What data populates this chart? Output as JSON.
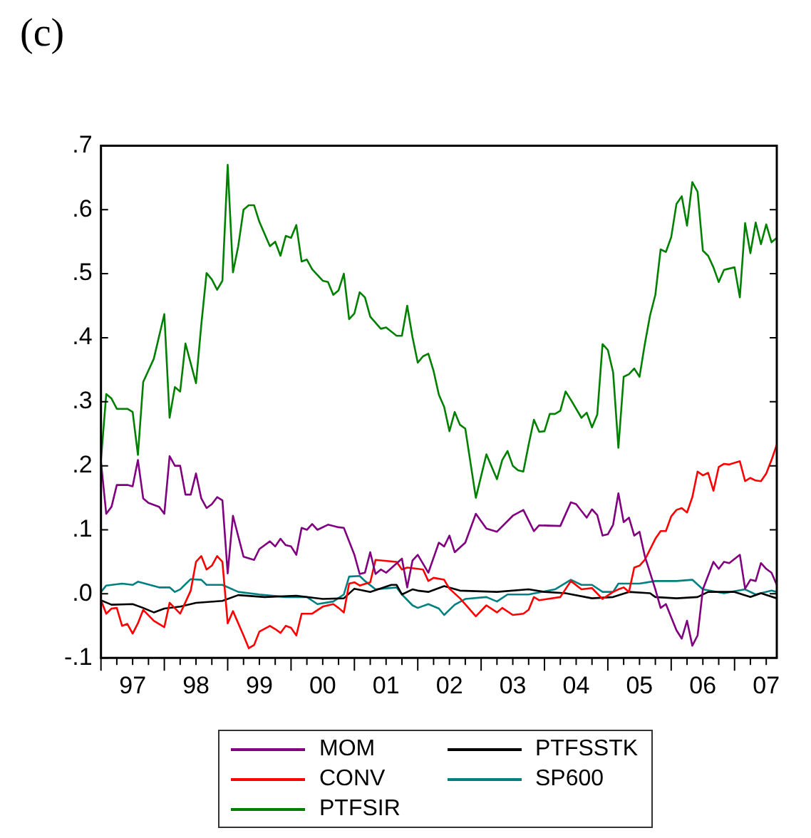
{
  "chart_data": {
    "type": "line",
    "title": "(c)",
    "legend": "bottom",
    "grid": false,
    "marker": "none",
    "line_style": "solid",
    "xlim": [
      "1997-01",
      "2007-09"
    ],
    "xticks": [
      {
        "value": "1997-07",
        "label": "97"
      },
      {
        "value": "1998-07",
        "label": "98"
      },
      {
        "value": "1999-07",
        "label": "99"
      },
      {
        "value": "2000-07",
        "label": "00"
      },
      {
        "value": "2001-07",
        "label": "01"
      },
      {
        "value": "2002-07",
        "label": "02"
      },
      {
        "value": "2003-07",
        "label": "03"
      },
      {
        "value": "2004-07",
        "label": "04"
      },
      {
        "value": "2005-07",
        "label": "05"
      },
      {
        "value": "2006-07",
        "label": "06"
      },
      {
        "value": "2007-07",
        "label": "07"
      }
    ],
    "ylim": [
      -0.1,
      0.7
    ],
    "yticks": [
      {
        "value": -0.1,
        "label": "-.1"
      },
      {
        "value": 0,
        "label": ".0"
      },
      {
        "value": 0.1,
        "label": ".1"
      },
      {
        "value": 0.2,
        "label": ".2"
      },
      {
        "value": 0.3,
        "label": ".3"
      },
      {
        "value": 0.4,
        "label": ".4"
      },
      {
        "value": 0.5,
        "label": ".5"
      },
      {
        "value": 0.6,
        "label": ".6"
      },
      {
        "value": 0.7,
        "label": ".7"
      }
    ],
    "series": [
      {
        "name": "MOM",
        "color": "#800080",
        "x": [
          "1997-01",
          "1997-02",
          "1997-03",
          "1997-04",
          "1997-06",
          "1997-07",
          "1997-08",
          "1997-09",
          "1997-10",
          "1997-12",
          "1998-01",
          "1998-02",
          "1998-03",
          "1998-04",
          "1998-05",
          "1998-06",
          "1998-07",
          "1998-08",
          "1998-09",
          "1998-10",
          "1998-11",
          "1998-12",
          "1999-01",
          "1999-02",
          "1999-04",
          "1999-06",
          "1999-07",
          "1999-09",
          "1999-10",
          "1999-11",
          "1999-12",
          "2000-01",
          "2000-02",
          "2000-03",
          "2000-04",
          "2000-05",
          "2000-06",
          "2000-08",
          "2000-10",
          "2000-11",
          "2001-01",
          "2001-02",
          "2001-03",
          "2001-04",
          "2001-05",
          "2001-06",
          "2001-07",
          "2001-10",
          "2001-11",
          "2001-12",
          "2002-01",
          "2002-03",
          "2002-05",
          "2002-06",
          "2002-07",
          "2002-08",
          "2002-10",
          "2002-12",
          "2003-02",
          "2003-04",
          "2003-07",
          "2003-09",
          "2003-11",
          "2003-12",
          "2004-04",
          "2004-06",
          "2004-07",
          "2004-09",
          "2004-10",
          "2004-11",
          "2004-12",
          "2005-01",
          "2005-02",
          "2005-03",
          "2005-04",
          "2005-05",
          "2005-06",
          "2005-07",
          "2005-08",
          "2005-10",
          "2005-11",
          "2005-12",
          "2006-02",
          "2006-03",
          "2006-04",
          "2006-05",
          "2006-06",
          "2006-07",
          "2006-09",
          "2006-10",
          "2006-11",
          "2006-12",
          "2007-02",
          "2007-03",
          "2007-04",
          "2007-05",
          "2007-06",
          "2007-07",
          "2007-08",
          "2007-09"
        ],
        "values": [
          0.206,
          0.125,
          0.136,
          0.17,
          0.17,
          0.168,
          0.209,
          0.149,
          0.142,
          0.136,
          0.125,
          0.215,
          0.2,
          0.2,
          0.155,
          0.155,
          0.188,
          0.149,
          0.134,
          0.14,
          0.151,
          0.146,
          0.032,
          0.122,
          0.058,
          0.053,
          0.07,
          0.082,
          0.074,
          0.086,
          0.076,
          0.074,
          0.061,
          0.103,
          0.1,
          0.109,
          0.1,
          0.108,
          0.104,
          0.103,
          0.061,
          0.031,
          0.033,
          0.065,
          0.031,
          0.038,
          0.033,
          0.055,
          0.01,
          0.052,
          0.061,
          0.033,
          0.08,
          0.074,
          0.091,
          0.065,
          0.08,
          0.125,
          0.102,
          0.097,
          0.122,
          0.131,
          0.098,
          0.107,
          0.106,
          0.143,
          0.14,
          0.119,
          0.132,
          0.123,
          0.091,
          0.093,
          0.108,
          0.157,
          0.112,
          0.119,
          0.091,
          0.097,
          0.059,
          0.007,
          -0.022,
          -0.016,
          -0.057,
          -0.07,
          -0.042,
          -0.081,
          -0.065,
          0.007,
          0.05,
          0.039,
          0.05,
          0.048,
          0.061,
          0.008,
          0.022,
          0.02,
          0.048,
          0.039,
          0.033,
          0.014
        ]
      },
      {
        "name": "CONV",
        "color": "#ff0000",
        "x": [
          "1997-01",
          "1997-02",
          "1997-03",
          "1997-04",
          "1997-05",
          "1997-06",
          "1997-07",
          "1997-08",
          "1997-09",
          "1997-11",
          "1998-01",
          "1998-02",
          "1998-04",
          "1998-06",
          "1998-07",
          "1998-08",
          "1998-09",
          "1998-10",
          "1998-11",
          "1998-12",
          "1999-01",
          "1999-02",
          "1999-04",
          "1999-05",
          "1999-06",
          "1999-07",
          "1999-09",
          "1999-10",
          "1999-11",
          "1999-12",
          "2000-01",
          "2000-02",
          "2000-03",
          "2000-05",
          "2000-07",
          "2000-09",
          "2000-10",
          "2000-11",
          "2000-12",
          "2001-01",
          "2001-02",
          "2001-04",
          "2001-05",
          "2001-09",
          "2001-10",
          "2001-11",
          "2002-01",
          "2002-02",
          "2002-03",
          "2002-04",
          "2002-06",
          "2002-07",
          "2002-09",
          "2002-12",
          "2003-02",
          "2003-04",
          "2003-05",
          "2003-07",
          "2003-09",
          "2003-10",
          "2003-11",
          "2003-12",
          "2004-04",
          "2004-06",
          "2004-08",
          "2004-10",
          "2004-12",
          "2005-02",
          "2005-03",
          "2005-04",
          "2005-05",
          "2005-06",
          "2005-07",
          "2005-08",
          "2005-10",
          "2005-11",
          "2005-12",
          "2006-01",
          "2006-02",
          "2006-03",
          "2006-04",
          "2006-05",
          "2006-06",
          "2006-07",
          "2006-08",
          "2006-09",
          "2006-10",
          "2006-11",
          "2006-12",
          "2007-02",
          "2007-03",
          "2007-04",
          "2007-05",
          "2007-06",
          "2007-07",
          "2007-08",
          "2007-09"
        ],
        "values": [
          -0.01,
          -0.031,
          -0.023,
          -0.022,
          -0.05,
          -0.047,
          -0.062,
          -0.046,
          -0.025,
          -0.042,
          -0.052,
          -0.014,
          -0.031,
          0.005,
          0.05,
          0.059,
          0.038,
          0.044,
          0.059,
          0.05,
          -0.046,
          -0.027,
          -0.065,
          -0.085,
          -0.08,
          -0.059,
          -0.05,
          -0.055,
          -0.061,
          -0.05,
          -0.053,
          -0.065,
          -0.031,
          -0.031,
          -0.02,
          -0.016,
          -0.022,
          -0.029,
          0.016,
          0.018,
          0.013,
          0.018,
          0.053,
          0.05,
          0.038,
          0.041,
          0.039,
          0.038,
          0.02,
          0.025,
          0.022,
          0.008,
          -0.007,
          -0.035,
          -0.018,
          -0.029,
          -0.022,
          -0.033,
          -0.031,
          -0.025,
          -0.005,
          -0.01,
          -0.005,
          0.02,
          0.007,
          0.009,
          -0.008,
          0.003,
          0.007,
          0.01,
          0.003,
          0.041,
          0.044,
          0.053,
          0.086,
          0.098,
          0.098,
          0.121,
          0.131,
          0.134,
          0.127,
          0.151,
          0.191,
          0.185,
          0.189,
          0.161,
          0.198,
          0.203,
          0.202,
          0.207,
          0.176,
          0.181,
          0.177,
          0.176,
          0.188,
          0.209,
          0.233
        ]
      },
      {
        "name": "PTFSIR",
        "color": "#008000",
        "x": [
          "1997-01",
          "1997-02",
          "1997-03",
          "1997-04",
          "1997-06",
          "1997-07",
          "1997-08",
          "1997-09",
          "1997-11",
          "1998-01",
          "1998-02",
          "1998-03",
          "1998-04",
          "1998-05",
          "1998-07",
          "1998-08",
          "1998-09",
          "1998-10",
          "1998-11",
          "1998-12",
          "1999-01",
          "1999-02",
          "1999-03",
          "1999-04",
          "1999-05",
          "1999-06",
          "1999-07",
          "1999-09",
          "1999-10",
          "1999-11",
          "1999-12",
          "2000-01",
          "2000-02",
          "2000-03",
          "2000-04",
          "2000-05",
          "2000-07",
          "2000-08",
          "2000-09",
          "2000-10",
          "2000-11",
          "2000-12",
          "2001-01",
          "2001-02",
          "2001-03",
          "2001-04",
          "2001-06",
          "2001-07",
          "2001-09",
          "2001-10",
          "2001-11",
          "2001-12",
          "2002-01",
          "2002-02",
          "2002-03",
          "2002-04",
          "2002-05",
          "2002-06",
          "2002-07",
          "2002-08",
          "2002-09",
          "2002-10",
          "2002-12",
          "2003-02",
          "2003-04",
          "2003-05",
          "2003-06",
          "2003-07",
          "2003-08",
          "2003-09",
          "2003-10",
          "2003-11",
          "2003-12",
          "2004-01",
          "2004-02",
          "2004-03",
          "2004-04",
          "2004-05",
          "2004-06",
          "2004-08",
          "2004-09",
          "2004-10",
          "2004-11",
          "2004-12",
          "2005-01",
          "2005-02",
          "2005-03",
          "2005-04",
          "2005-05",
          "2005-06",
          "2005-07",
          "2005-08",
          "2005-09",
          "2005-10",
          "2005-11",
          "2005-12",
          "2006-01",
          "2006-02",
          "2006-03",
          "2006-04",
          "2006-05",
          "2006-06",
          "2006-07",
          "2006-08",
          "2006-09",
          "2006-10",
          "2006-11",
          "2007-01",
          "2007-02",
          "2007-03",
          "2007-04",
          "2007-05",
          "2007-06",
          "2007-07",
          "2007-08",
          "2007-09"
        ],
        "values": [
          0.209,
          0.312,
          0.305,
          0.289,
          0.289,
          0.284,
          0.217,
          0.331,
          0.367,
          0.437,
          0.275,
          0.323,
          0.316,
          0.391,
          0.329,
          0.42,
          0.501,
          0.491,
          0.475,
          0.489,
          0.67,
          0.502,
          0.543,
          0.6,
          0.607,
          0.607,
          0.581,
          0.543,
          0.55,
          0.528,
          0.559,
          0.556,
          0.576,
          0.519,
          0.522,
          0.507,
          0.489,
          0.487,
          0.467,
          0.474,
          0.5,
          0.429,
          0.438,
          0.471,
          0.463,
          0.433,
          0.414,
          0.416,
          0.403,
          0.403,
          0.45,
          0.401,
          0.361,
          0.371,
          0.375,
          0.348,
          0.311,
          0.292,
          0.254,
          0.284,
          0.264,
          0.258,
          0.15,
          0.218,
          0.179,
          0.209,
          0.223,
          0.2,
          0.193,
          0.191,
          0.233,
          0.272,
          0.253,
          0.254,
          0.281,
          0.281,
          0.286,
          0.316,
          0.303,
          0.275,
          0.283,
          0.26,
          0.28,
          0.39,
          0.381,
          0.346,
          0.228,
          0.339,
          0.343,
          0.352,
          0.339,
          0.39,
          0.435,
          0.467,
          0.538,
          0.534,
          0.557,
          0.609,
          0.621,
          0.575,
          0.643,
          0.628,
          0.536,
          0.528,
          0.51,
          0.487,
          0.506,
          0.51,
          0.463,
          0.579,
          0.532,
          0.58,
          0.546,
          0.577,
          0.549,
          0.556
        ]
      },
      {
        "name": "PTFSSTK",
        "color": "#000000",
        "x": [
          "1997-01",
          "1997-03",
          "1997-07",
          "1997-09",
          "1997-11",
          "1998-01",
          "1998-04",
          "1998-07",
          "1998-12",
          "1999-03",
          "1999-08",
          "2000-02",
          "2000-07",
          "2000-11",
          "2001-01",
          "2001-04",
          "2001-08",
          "2001-09",
          "2001-10",
          "2001-12",
          "2002-01",
          "2002-03",
          "2002-06",
          "2002-09",
          "2003-04",
          "2003-10",
          "2004-01",
          "2004-05",
          "2004-10",
          "2005-02",
          "2005-05",
          "2005-09",
          "2005-10",
          "2006-02",
          "2006-06",
          "2006-08",
          "2007-01",
          "2007-04",
          "2007-06",
          "2007-09"
        ],
        "values": [
          -0.01,
          -0.017,
          -0.016,
          -0.022,
          -0.029,
          -0.023,
          -0.02,
          -0.014,
          -0.011,
          -0.002,
          -0.005,
          -0.003,
          -0.008,
          -0.007,
          0.008,
          0.003,
          0.014,
          0.014,
          -0.001,
          0.007,
          0.005,
          0.003,
          0.012,
          0.005,
          0.003,
          0.007,
          0.003,
          0.001,
          -0.007,
          -0.005,
          0.003,
          0.001,
          -0.005,
          -0.007,
          -0.005,
          0.003,
          0.003,
          -0.005,
          0.001,
          -0.007
        ]
      },
      {
        "name": "SP600",
        "color": "#008080",
        "x": [
          "1997-01",
          "1997-02",
          "1997-05",
          "1997-07",
          "1997-08",
          "1997-12",
          "1998-02",
          "1998-03",
          "1998-04",
          "1998-06",
          "1998-08",
          "1998-09",
          "1998-12",
          "1999-03",
          "1999-07",
          "1999-12",
          "2000-04",
          "2000-06",
          "2000-09",
          "2000-11",
          "2000-12",
          "2001-02",
          "2001-03",
          "2001-05",
          "2001-09",
          "2001-10",
          "2001-12",
          "2002-01",
          "2002-03",
          "2002-05",
          "2002-06",
          "2002-08",
          "2002-10",
          "2003-02",
          "2003-04",
          "2003-06",
          "2003-10",
          "2004-03",
          "2004-06",
          "2004-08",
          "2004-10",
          "2004-12",
          "2005-02",
          "2005-03",
          "2005-07",
          "2005-10",
          "2006-02",
          "2006-05",
          "2006-07",
          "2006-11",
          "2007-03",
          "2007-05",
          "2007-08",
          "2007-09"
        ],
        "values": [
          0.003,
          0.013,
          0.016,
          0.014,
          0.019,
          0.01,
          0.01,
          0.003,
          0.007,
          0.023,
          0.022,
          0.014,
          0.014,
          0.003,
          -0.001,
          -0.005,
          -0.005,
          -0.016,
          -0.012,
          -0.001,
          0.027,
          0.028,
          0.02,
          0.007,
          0.01,
          -0.001,
          -0.018,
          -0.022,
          -0.016,
          -0.023,
          -0.033,
          -0.017,
          -0.008,
          -0.005,
          -0.012,
          -0.001,
          -0.001,
          0.007,
          0.022,
          0.014,
          0.014,
          0.003,
          0.003,
          0.016,
          0.016,
          0.02,
          0.02,
          0.022,
          0.007,
          0.001,
          0.007,
          -0.001,
          0.005,
          0.003
        ]
      }
    ]
  }
}
